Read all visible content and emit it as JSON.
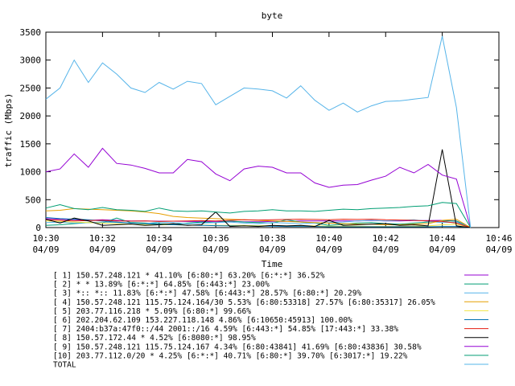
{
  "chart_data": {
    "type": "line",
    "title": "byte",
    "xlabel": "Time",
    "ylabel": "traffic (Mbps)",
    "ylim": [
      0,
      3500
    ],
    "xlim": [
      "10:30",
      "10:46"
    ],
    "grid": false,
    "legend_position": "bottom",
    "y_ticks": [
      "0",
      "500",
      "1000",
      "1500",
      "2000",
      "2500",
      "3000",
      "3500"
    ],
    "x_ticks": [
      {
        "time": "10:30",
        "date": "04/09"
      },
      {
        "time": "10:32",
        "date": "04/09"
      },
      {
        "time": "10:34",
        "date": "04/09"
      },
      {
        "time": "10:36",
        "date": "04/09"
      },
      {
        "time": "10:38",
        "date": "04/09"
      },
      {
        "time": "10:40",
        "date": "04/09"
      },
      {
        "time": "10:42",
        "date": "04/09"
      },
      {
        "time": "10:44",
        "date": "04/09"
      },
      {
        "time": "10:46",
        "date": "04/09"
      }
    ],
    "x": [
      "10:30",
      "10:30:30",
      "10:31",
      "10:31:30",
      "10:32",
      "10:32:30",
      "10:33",
      "10:33:30",
      "10:34",
      "10:34:30",
      "10:35",
      "10:35:30",
      "10:36",
      "10:36:30",
      "10:37",
      "10:37:30",
      "10:38",
      "10:38:30",
      "10:39",
      "10:39:30",
      "10:40",
      "10:40:30",
      "10:41",
      "10:41:30",
      "10:42",
      "10:42:30",
      "10:43",
      "10:43:30",
      "10:44",
      "10:44:30",
      "10:45"
    ],
    "series": [
      {
        "name": "[ 1] 150.57.248.121 * 41.10% [6:80:*] 63.20% [6:*:*] 36.52%",
        "color": "#9400d3",
        "values": [
          160,
          150,
          140,
          130,
          140,
          130,
          120,
          120,
          115,
          115,
          110,
          110,
          110,
          110,
          105,
          105,
          110,
          110,
          120,
          120,
          120,
          120,
          120,
          125,
          120,
          120,
          125,
          125,
          130,
          120,
          0
        ]
      },
      {
        "name": "[ 2] * * 13.89% [6:*:*] 64.85% [6:443:*] 23.00%",
        "color": "#009e73",
        "values": [
          40,
          50,
          70,
          90,
          80,
          170,
          90,
          80,
          70,
          60,
          80,
          100,
          90,
          120,
          100,
          90,
          80,
          140,
          100,
          80,
          40,
          60,
          80,
          90,
          70,
          60,
          80,
          100,
          120,
          120,
          0
        ]
      },
      {
        "name": "[ 3] *:: *:: 11.83% [6:*:*] 47.58% [6:443:*] 28.57% [6:80:*] 20.29%",
        "color": "#56b4e9",
        "values": [
          90,
          100,
          80,
          90,
          100,
          90,
          80,
          70,
          100,
          90,
          70,
          80,
          90,
          100,
          80,
          70,
          90,
          80,
          70,
          80,
          90,
          100,
          120,
          130,
          120,
          130,
          140,
          110,
          90,
          100,
          0
        ]
      },
      {
        "name": "[ 4] 150.57.248.121 115.75.124.164/30 5.53% [6:80:53318] 27.57% [6:80:35317] 26.05%",
        "color": "#e69f00",
        "values": [
          300,
          310,
          340,
          330,
          320,
          310,
          300,
          280,
          250,
          200,
          180,
          170,
          160,
          150,
          140,
          130,
          120,
          110,
          100,
          90,
          80,
          70,
          60,
          60,
          50,
          50,
          60,
          70,
          130,
          150,
          0
        ]
      },
      {
        "name": "[ 5] 203.77.116.218 * 5.09% [6:80:*] 99.66%",
        "color": "#f0e442",
        "values": [
          120,
          110,
          100,
          90,
          80,
          70,
          60,
          55,
          50,
          50,
          45,
          45,
          40,
          40,
          40,
          35,
          35,
          30,
          30,
          30,
          25,
          25,
          25,
          20,
          20,
          20,
          25,
          30,
          50,
          60,
          0
        ]
      },
      {
        "name": "[ 6] 202.204.62.109 153.227.118.148 4.86% [6:10650:45913] 100.00%",
        "color": "#0072b2",
        "values": [
          180,
          160,
          150,
          140,
          120,
          100,
          80,
          70,
          60,
          50,
          45,
          40,
          35,
          30,
          30,
          25,
          25,
          20,
          20,
          20,
          15,
          15,
          15,
          15,
          15,
          15,
          15,
          15,
          20,
          20,
          0
        ]
      },
      {
        "name": "[ 7] 2404:b37a:47f0::/44 2001::/16 4.59% [6:443:*] 54.85% [17:443:*] 33.38%",
        "color": "#e51e10",
        "values": [
          140,
          130,
          120,
          125,
          130,
          120,
          115,
          120,
          110,
          115,
          120,
          125,
          120,
          130,
          140,
          135,
          140,
          145,
          150,
          145,
          140,
          150,
          145,
          150,
          140,
          135,
          130,
          120,
          110,
          80,
          0
        ]
      },
      {
        "name": "[ 8] 150.57.172.44 * 4.52% [6:8080:*] 98.95%",
        "color": "#000000",
        "values": [
          150,
          80,
          170,
          120,
          40,
          50,
          60,
          40,
          50,
          70,
          40,
          50,
          280,
          20,
          30,
          20,
          40,
          30,
          40,
          20,
          130,
          40,
          50,
          60,
          70,
          40,
          50,
          30,
          1400,
          30,
          0
        ]
      },
      {
        "name": "[ 9] 150.57.248.121 115.75.124.167 4.34% [6:80:43841] 41.69% [6:80:43836] 30.58%",
        "color": "#9400d3",
        "values": [
          1000,
          1050,
          1320,
          1080,
          1420,
          1150,
          1120,
          1060,
          980,
          980,
          1220,
          1180,
          960,
          840,
          1050,
          1100,
          1080,
          980,
          980,
          800,
          720,
          760,
          770,
          850,
          920,
          1080,
          980,
          1130,
          940,
          870,
          0
        ]
      },
      {
        "name": "[10] 203.77.112.0/20 * 4.25% [6:*:*] 40.71% [6:80:*] 39.70% [6:3017:*] 19.22%",
        "color": "#009e73",
        "values": [
          350,
          410,
          340,
          320,
          360,
          320,
          310,
          290,
          350,
          300,
          290,
          300,
          280,
          260,
          290,
          300,
          320,
          300,
          300,
          290,
          310,
          330,
          320,
          340,
          350,
          360,
          380,
          390,
          450,
          430,
          0
        ]
      },
      {
        "name": "TOTAL",
        "color": "#56b4e9",
        "values": [
          2300,
          2500,
          3000,
          2600,
          2950,
          2750,
          2500,
          2420,
          2600,
          2480,
          2620,
          2580,
          2200,
          2350,
          2500,
          2480,
          2450,
          2320,
          2540,
          2280,
          2100,
          2230,
          2070,
          2180,
          2260,
          2270,
          2300,
          2330,
          3430,
          2150,
          0
        ]
      }
    ]
  }
}
